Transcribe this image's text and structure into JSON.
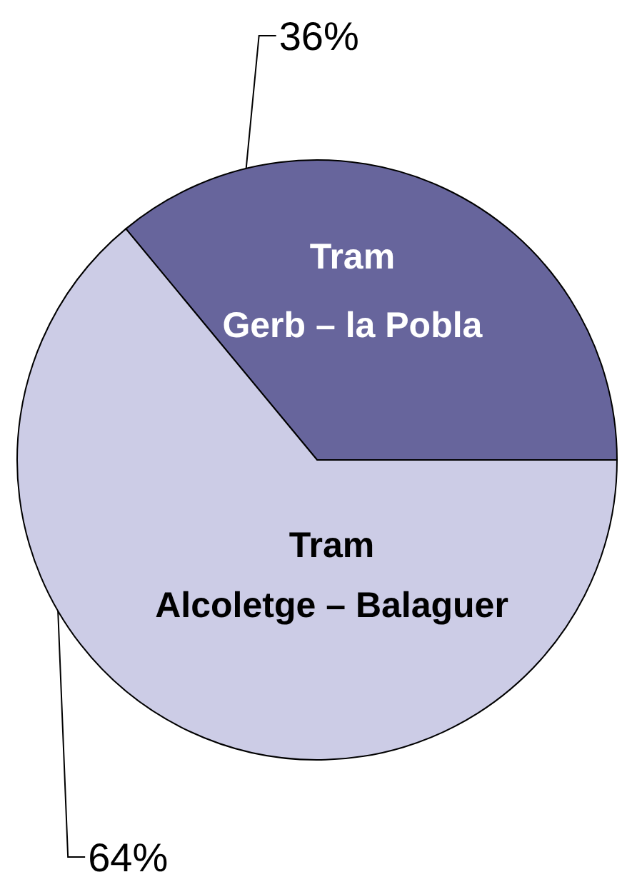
{
  "chart_data": {
    "type": "pie",
    "categories": [
      "Tram Gerb – la Pobla",
      "Tram Alcoletge – Balaguer"
    ],
    "values": [
      36,
      64
    ],
    "colors": [
      "#67659c",
      "#cccce6"
    ],
    "value_labels": [
      "36%",
      "64%"
    ]
  }
}
